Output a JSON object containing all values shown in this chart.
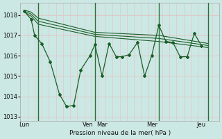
{
  "background_color": "#cce8e4",
  "grid_color": "#e0c8c8",
  "line_color": "#1a5e28",
  "vline_color": "#2d6e3a",
  "title": "Pression niveau de la mer( hPa )",
  "ylim": [
    1012.8,
    1018.6
  ],
  "yticks": [
    1013,
    1014,
    1015,
    1016,
    1017,
    1018
  ],
  "day_labels": [
    "Lun",
    "Ven",
    "Mar",
    "Mer",
    "Jeu"
  ],
  "day_x": [
    0.5,
    9.5,
    11.5,
    18.5,
    25.5
  ],
  "vline_x": [
    2.5,
    10.5,
    19.5,
    26.5
  ],
  "xlim": [
    0,
    28
  ],
  "series_jagged": {
    "x": [
      0.5,
      1.5,
      2.0,
      3.0,
      4.2,
      5.5,
      6.5,
      7.5,
      8.5,
      9.8,
      10.5,
      11.5,
      12.5,
      13.5,
      14.3,
      15.3,
      16.5,
      17.5,
      18.5,
      19.5,
      20.5,
      21.5,
      22.5,
      23.5,
      24.5,
      25.5
    ],
    "y": [
      1018.2,
      1017.8,
      1017.0,
      1016.6,
      1015.7,
      1014.1,
      1013.5,
      1013.55,
      1015.3,
      1016.0,
      1016.55,
      1015.0,
      1016.6,
      1015.95,
      1015.95,
      1016.05,
      1016.65,
      1015.0,
      1016.0,
      1017.5,
      1016.7,
      1016.65,
      1015.95,
      1015.95,
      1017.1,
      1016.5
    ]
  },
  "series_smooth1": {
    "x": [
      0.5,
      1.5,
      2.5,
      10.5,
      19.5,
      26.5
    ],
    "y": [
      1018.25,
      1018.15,
      1017.85,
      1017.15,
      1017.0,
      1016.6
    ]
  },
  "series_smooth2": {
    "x": [
      0.5,
      1.5,
      2.5,
      10.5,
      19.5,
      26.5
    ],
    "y": [
      1018.2,
      1018.05,
      1017.7,
      1017.05,
      1016.85,
      1016.5
    ]
  },
  "series_smooth3": {
    "x": [
      0.5,
      1.5,
      2.5,
      10.5,
      19.5,
      26.5
    ],
    "y": [
      1018.15,
      1017.95,
      1017.55,
      1016.95,
      1016.7,
      1016.4
    ]
  }
}
